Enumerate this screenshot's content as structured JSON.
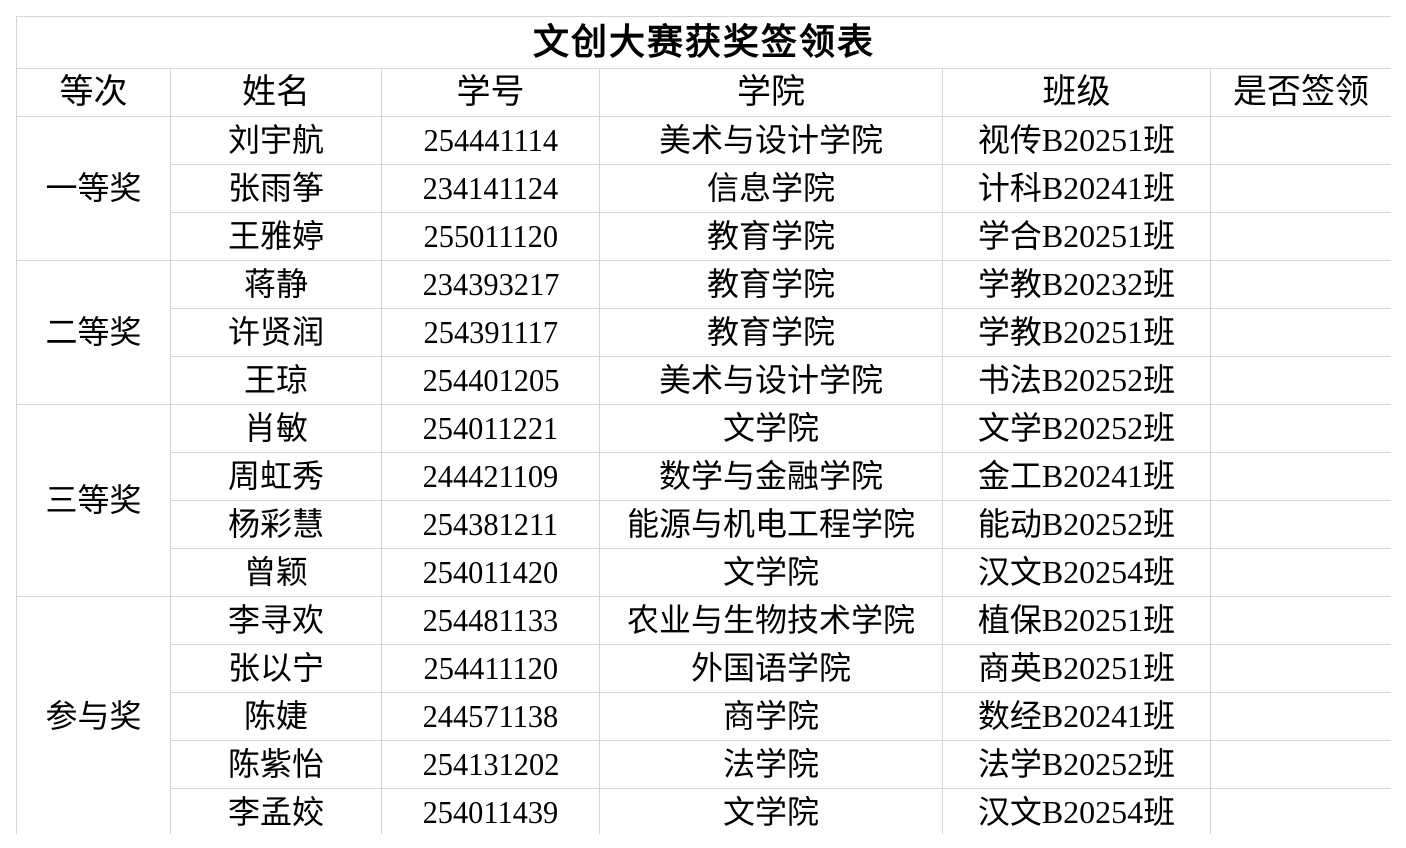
{
  "title": "文创大赛获奖签领表",
  "headers": [
    "等次",
    "姓名",
    "学号",
    "学院",
    "班级",
    "是否签领"
  ],
  "groups": [
    {
      "level": "一等奖",
      "rows": [
        {
          "name": "刘宇航",
          "id": "254441114",
          "college": "美术与设计学院",
          "class": "视传B20251班",
          "signed": ""
        },
        {
          "name": "张雨筝",
          "id": "234141124",
          "college": "信息学院",
          "class": "计科B20241班",
          "signed": ""
        },
        {
          "name": "王雅婷",
          "id": "255011120",
          "college": "教育学院",
          "class": "学合B20251班",
          "signed": ""
        }
      ]
    },
    {
      "level": "二等奖",
      "rows": [
        {
          "name": "蒋静",
          "id": "234393217",
          "college": "教育学院",
          "class": "学教B20232班",
          "signed": ""
        },
        {
          "name": "许贤润",
          "id": "254391117",
          "college": "教育学院",
          "class": "学教B20251班",
          "signed": ""
        },
        {
          "name": "王琼",
          "id": "254401205",
          "college": "美术与设计学院",
          "class": "书法B20252班",
          "signed": ""
        }
      ]
    },
    {
      "level": "三等奖",
      "rows": [
        {
          "name": "肖敏",
          "id": "254011221",
          "college": "文学院",
          "class": "文学B20252班",
          "signed": ""
        },
        {
          "name": "周虹秀",
          "id": "244421109",
          "college": "数学与金融学院",
          "class": "金工B20241班",
          "signed": ""
        },
        {
          "name": "杨彩慧",
          "id": "254381211",
          "college": "能源与机电工程学院",
          "class": "能动B20252班",
          "signed": ""
        },
        {
          "name": "曾颖",
          "id": "254011420",
          "college": "文学院",
          "class": "汉文B20254班",
          "signed": ""
        }
      ]
    },
    {
      "level": "参与奖",
      "rows": [
        {
          "name": "李寻欢",
          "id": "254481133",
          "college": "农业与生物技术学院",
          "class": "植保B20251班",
          "signed": ""
        },
        {
          "name": "张以宁",
          "id": "254411120",
          "college": "外国语学院",
          "class": "商英B20251班",
          "signed": ""
        },
        {
          "name": "陈婕",
          "id": "244571138",
          "college": "商学院",
          "class": "数经B20241班",
          "signed": ""
        },
        {
          "name": "陈紫怡",
          "id": "254131202",
          "college": "法学院",
          "class": "法学B20252班",
          "signed": ""
        },
        {
          "name": "李孟姣",
          "id": "254011439",
          "college": "文学院",
          "class": "汉文B20254班",
          "signed": ""
        }
      ]
    }
  ]
}
